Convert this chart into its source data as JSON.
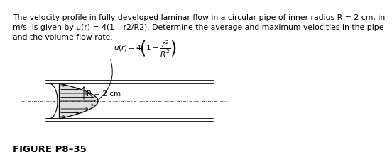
{
  "background_color": "#ffffff",
  "paragraph_line1": "The velocity profile in fully developed laminar flow in a circular pipe of inner radius R = 2 cm, in",
  "paragraph_line2": "m/s. is given by u(r) = 4(1 – r2/R2). Determine the average and maximum velocities in the pipe",
  "paragraph_line3": "and the volume flow rate.",
  "figure_label": "FIGURE P8–35",
  "radius_label": "R = 2 cm",
  "text_fontsize": 7.8,
  "label_fontsize": 7.5,
  "fig_label_fontsize": 9.5,
  "eq_fontsize": 7.5
}
